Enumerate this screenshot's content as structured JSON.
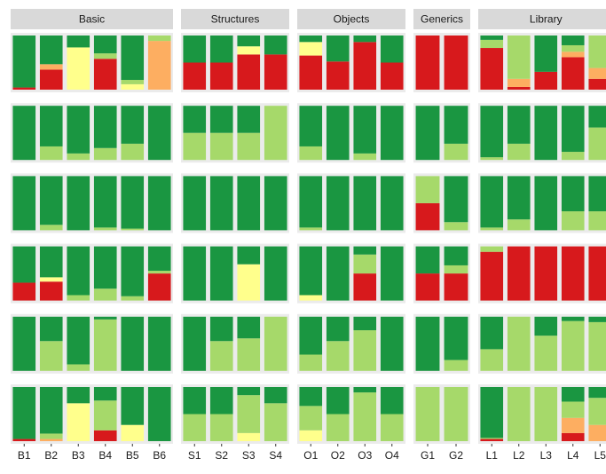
{
  "chart_data": {
    "type": "bar",
    "stacked": true,
    "colors": [
      "#d7191c",
      "#fdae61",
      "#ffff8c",
      "#a6d96a",
      "#1a9641"
    ],
    "ylim": [
      0,
      100
    ],
    "facets": [
      {
        "name": "Basic",
        "categories": [
          "B1",
          "B2",
          "B3",
          "B4",
          "B5",
          "B6"
        ]
      },
      {
        "name": "Structures",
        "categories": [
          "S1",
          "S2",
          "S3",
          "S4"
        ]
      },
      {
        "name": "Objects",
        "categories": [
          "O1",
          "O2",
          "O3",
          "O4"
        ]
      },
      {
        "name": "Generics",
        "categories": [
          "G1",
          "G2"
        ]
      },
      {
        "name": "Library",
        "categories": [
          "L1",
          "L2",
          "L3",
          "L4",
          "L5"
        ]
      }
    ],
    "rows": [
      [
        [
          [
            4,
            0,
            0,
            0,
            96
          ],
          [
            37,
            10,
            0,
            0,
            53
          ],
          [
            0,
            0,
            78,
            0,
            22
          ],
          [
            57,
            0,
            0,
            10,
            33
          ],
          [
            0,
            0,
            10,
            8,
            82
          ],
          [
            0,
            90,
            0,
            10,
            0
          ]
        ],
        [
          [
            50,
            0,
            0,
            0,
            50
          ],
          [
            50,
            0,
            0,
            0,
            50
          ],
          [
            65,
            0,
            15,
            0,
            20
          ],
          [
            65,
            0,
            0,
            0,
            35
          ]
        ],
        [
          [
            63,
            0,
            25,
            0,
            12
          ],
          [
            52,
            0,
            0,
            0,
            48
          ],
          [
            88,
            0,
            0,
            0,
            12
          ],
          [
            50,
            0,
            0,
            0,
            50
          ]
        ],
        [
          [
            100,
            0,
            0,
            0,
            0
          ],
          [
            100,
            0,
            0,
            0,
            0
          ]
        ],
        [
          [
            77,
            0,
            0,
            15,
            8
          ],
          [
            5,
            15,
            0,
            80,
            0
          ],
          [
            33,
            0,
            0,
            0,
            67
          ],
          [
            60,
            10,
            0,
            12,
            18
          ],
          [
            20,
            20,
            0,
            60,
            0
          ]
        ]
      ],
      [
        [
          [
            0,
            0,
            0,
            0,
            100
          ],
          [
            0,
            0,
            0,
            25,
            75
          ],
          [
            0,
            0,
            0,
            12,
            88
          ],
          [
            0,
            0,
            0,
            22,
            78
          ],
          [
            0,
            0,
            0,
            30,
            70
          ],
          [
            0,
            0,
            0,
            0,
            100
          ]
        ],
        [
          [
            0,
            0,
            0,
            50,
            50
          ],
          [
            0,
            0,
            0,
            50,
            50
          ],
          [
            0,
            0,
            0,
            50,
            50
          ],
          [
            0,
            0,
            0,
            100,
            0
          ]
        ],
        [
          [
            0,
            0,
            0,
            25,
            75
          ],
          [
            0,
            0,
            0,
            0,
            100
          ],
          [
            0,
            0,
            0,
            12,
            88
          ],
          [
            0,
            0,
            0,
            0,
            100
          ]
        ],
        [
          [
            0,
            0,
            0,
            0,
            100
          ],
          [
            0,
            0,
            0,
            30,
            70
          ]
        ],
        [
          [
            0,
            0,
            0,
            5,
            95
          ],
          [
            0,
            0,
            0,
            30,
            70
          ],
          [
            0,
            0,
            0,
            0,
            100
          ],
          [
            0,
            0,
            0,
            15,
            85
          ],
          [
            0,
            0,
            0,
            60,
            40
          ]
        ]
      ],
      [
        [
          [
            0,
            0,
            0,
            0,
            100
          ],
          [
            0,
            0,
            0,
            10,
            90
          ],
          [
            0,
            0,
            0,
            0,
            100
          ],
          [
            0,
            0,
            0,
            5,
            95
          ],
          [
            0,
            0,
            0,
            3,
            97
          ],
          [
            0,
            0,
            0,
            0,
            100
          ]
        ],
        [
          [
            0,
            0,
            0,
            0,
            100
          ],
          [
            0,
            0,
            0,
            0,
            100
          ],
          [
            0,
            0,
            0,
            0,
            100
          ],
          [
            0,
            0,
            0,
            0,
            100
          ]
        ],
        [
          [
            0,
            0,
            0,
            5,
            95
          ],
          [
            0,
            0,
            0,
            0,
            100
          ],
          [
            0,
            0,
            0,
            0,
            100
          ],
          [
            0,
            0,
            0,
            0,
            100
          ]
        ],
        [
          [
            50,
            0,
            0,
            50,
            0
          ],
          [
            0,
            0,
            0,
            15,
            85
          ]
        ],
        [
          [
            0,
            0,
            0,
            5,
            95
          ],
          [
            0,
            0,
            0,
            20,
            80
          ],
          [
            0,
            0,
            0,
            0,
            100
          ],
          [
            0,
            0,
            0,
            35,
            65
          ],
          [
            0,
            0,
            0,
            35,
            65
          ]
        ]
      ],
      [
        [
          [
            33,
            0,
            0,
            0,
            67
          ],
          [
            35,
            0,
            8,
            0,
            57
          ],
          [
            0,
            0,
            0,
            10,
            90
          ],
          [
            0,
            0,
            0,
            22,
            78
          ],
          [
            0,
            0,
            0,
            8,
            92
          ],
          [
            50,
            0,
            0,
            5,
            45
          ]
        ],
        [
          [
            0,
            0,
            0,
            0,
            100
          ],
          [
            0,
            0,
            0,
            0,
            100
          ],
          [
            0,
            0,
            67,
            0,
            33
          ],
          [
            0,
            0,
            0,
            0,
            100
          ]
        ],
        [
          [
            0,
            0,
            10,
            0,
            90
          ],
          [
            0,
            0,
            0,
            0,
            100
          ],
          [
            50,
            0,
            0,
            35,
            15
          ],
          [
            0,
            0,
            0,
            0,
            100
          ]
        ],
        [
          [
            50,
            0,
            0,
            0,
            50
          ],
          [
            50,
            0,
            0,
            15,
            35
          ]
        ],
        [
          [
            90,
            0,
            0,
            10,
            0
          ],
          [
            100,
            0,
            0,
            0,
            0
          ],
          [
            100,
            0,
            0,
            0,
            0
          ],
          [
            100,
            0,
            0,
            0,
            0
          ],
          [
            100,
            0,
            0,
            0,
            0
          ]
        ]
      ],
      [
        [
          [
            0,
            0,
            0,
            0,
            100
          ],
          [
            0,
            0,
            0,
            55,
            45
          ],
          [
            0,
            0,
            0,
            12,
            88
          ],
          [
            0,
            0,
            0,
            95,
            5
          ],
          [
            0,
            0,
            0,
            0,
            100
          ],
          [
            0,
            0,
            0,
            0,
            100
          ]
        ],
        [
          [
            0,
            0,
            0,
            0,
            100
          ],
          [
            0,
            0,
            0,
            55,
            45
          ],
          [
            0,
            0,
            0,
            60,
            40
          ],
          [
            0,
            0,
            0,
            100,
            0
          ]
        ],
        [
          [
            0,
            0,
            0,
            30,
            70
          ],
          [
            0,
            0,
            0,
            55,
            45
          ],
          [
            0,
            0,
            0,
            75,
            25
          ],
          [
            0,
            0,
            0,
            0,
            100
          ]
        ],
        [
          [
            0,
            0,
            0,
            0,
            100
          ],
          [
            0,
            0,
            0,
            20,
            80
          ]
        ],
        [
          [
            0,
            0,
            0,
            40,
            60
          ],
          [
            0,
            0,
            0,
            100,
            0
          ],
          [
            0,
            0,
            0,
            65,
            35
          ],
          [
            0,
            0,
            0,
            92,
            8
          ],
          [
            0,
            0,
            0,
            90,
            10
          ]
        ]
      ],
      [
        [
          [
            4,
            0,
            0,
            0,
            96
          ],
          [
            0,
            4,
            0,
            10,
            86
          ],
          [
            0,
            0,
            70,
            0,
            30
          ],
          [
            20,
            0,
            0,
            55,
            25
          ],
          [
            0,
            0,
            30,
            0,
            70
          ],
          [
            0,
            0,
            0,
            0,
            100
          ]
        ],
        [
          [
            0,
            0,
            0,
            50,
            50
          ],
          [
            0,
            0,
            0,
            50,
            50
          ],
          [
            0,
            0,
            15,
            70,
            15
          ],
          [
            0,
            0,
            0,
            70,
            30
          ]
        ],
        [
          [
            0,
            0,
            20,
            45,
            35
          ],
          [
            0,
            0,
            0,
            50,
            50
          ],
          [
            0,
            0,
            0,
            90,
            10
          ],
          [
            0,
            0,
            0,
            50,
            50
          ]
        ],
        [
          [
            0,
            0,
            0,
            100,
            0
          ],
          [
            0,
            0,
            0,
            100,
            0
          ]
        ],
        [
          [
            4,
            0,
            0,
            2,
            94
          ],
          [
            0,
            0,
            0,
            100,
            0
          ],
          [
            0,
            0,
            0,
            100,
            0
          ],
          [
            15,
            28,
            0,
            30,
            27
          ],
          [
            0,
            30,
            0,
            50,
            20
          ]
        ]
      ]
    ]
  }
}
